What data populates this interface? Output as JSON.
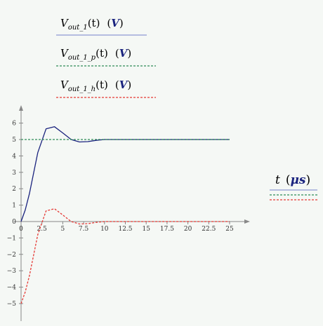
{
  "legend": {
    "entries": [
      {
        "main": "V",
        "sub": "out_1",
        "arg": "(t)",
        "unit": "V",
        "color": "#1a237e",
        "dash": "solid"
      },
      {
        "main": "V",
        "sub": "out_1_p",
        "arg": "(t)",
        "unit": "V",
        "color": "#2e8b57",
        "dash": "dashed"
      },
      {
        "main": "V",
        "sub": "out_1_h",
        "arg": "(t)",
        "unit": "V",
        "color": "#e53935",
        "dash": "dashed"
      }
    ],
    "x_label": {
      "var": "t",
      "unit": "μs"
    }
  },
  "chart_data": {
    "type": "line",
    "xlim": [
      0,
      25
    ],
    "ylim": [
      -6,
      7
    ],
    "x_ticks": [
      "0",
      "2.5",
      "5",
      "7.5",
      "10",
      "12.5",
      "15",
      "17.5",
      "20",
      "22.5",
      "25"
    ],
    "y_ticks": [
      "6",
      "5",
      "4",
      "3",
      "2",
      "1",
      "0",
      "−1",
      "−2",
      "−3",
      "−4",
      "−5"
    ],
    "grid": false,
    "series": [
      {
        "color": "#1a237e",
        "dash": "solid",
        "x": [
          0,
          0.5,
          1,
          2,
          3,
          4,
          5,
          6,
          7,
          8,
          9,
          10,
          12,
          15,
          20,
          25
        ],
        "y": [
          0,
          0.7,
          1.7,
          4.2,
          5.65,
          5.78,
          5.4,
          5.0,
          4.85,
          4.87,
          4.95,
          5.0,
          5.0,
          5.0,
          5.0,
          5.0
        ]
      },
      {
        "color": "#2e8b57",
        "dash": "dashed",
        "x": [
          0,
          25
        ],
        "y": [
          5,
          5
        ]
      },
      {
        "color": "#e53935",
        "dash": "dashed",
        "x": [
          0,
          0.5,
          1,
          2,
          3,
          4,
          5,
          6,
          7,
          8,
          9,
          10,
          12,
          15,
          20,
          25
        ],
        "y": [
          -5,
          -4.3,
          -3.3,
          -0.8,
          0.65,
          0.78,
          0.4,
          0.0,
          -0.15,
          -0.13,
          -0.05,
          0.0,
          0.0,
          0.0,
          0.0,
          0.0
        ]
      }
    ]
  }
}
